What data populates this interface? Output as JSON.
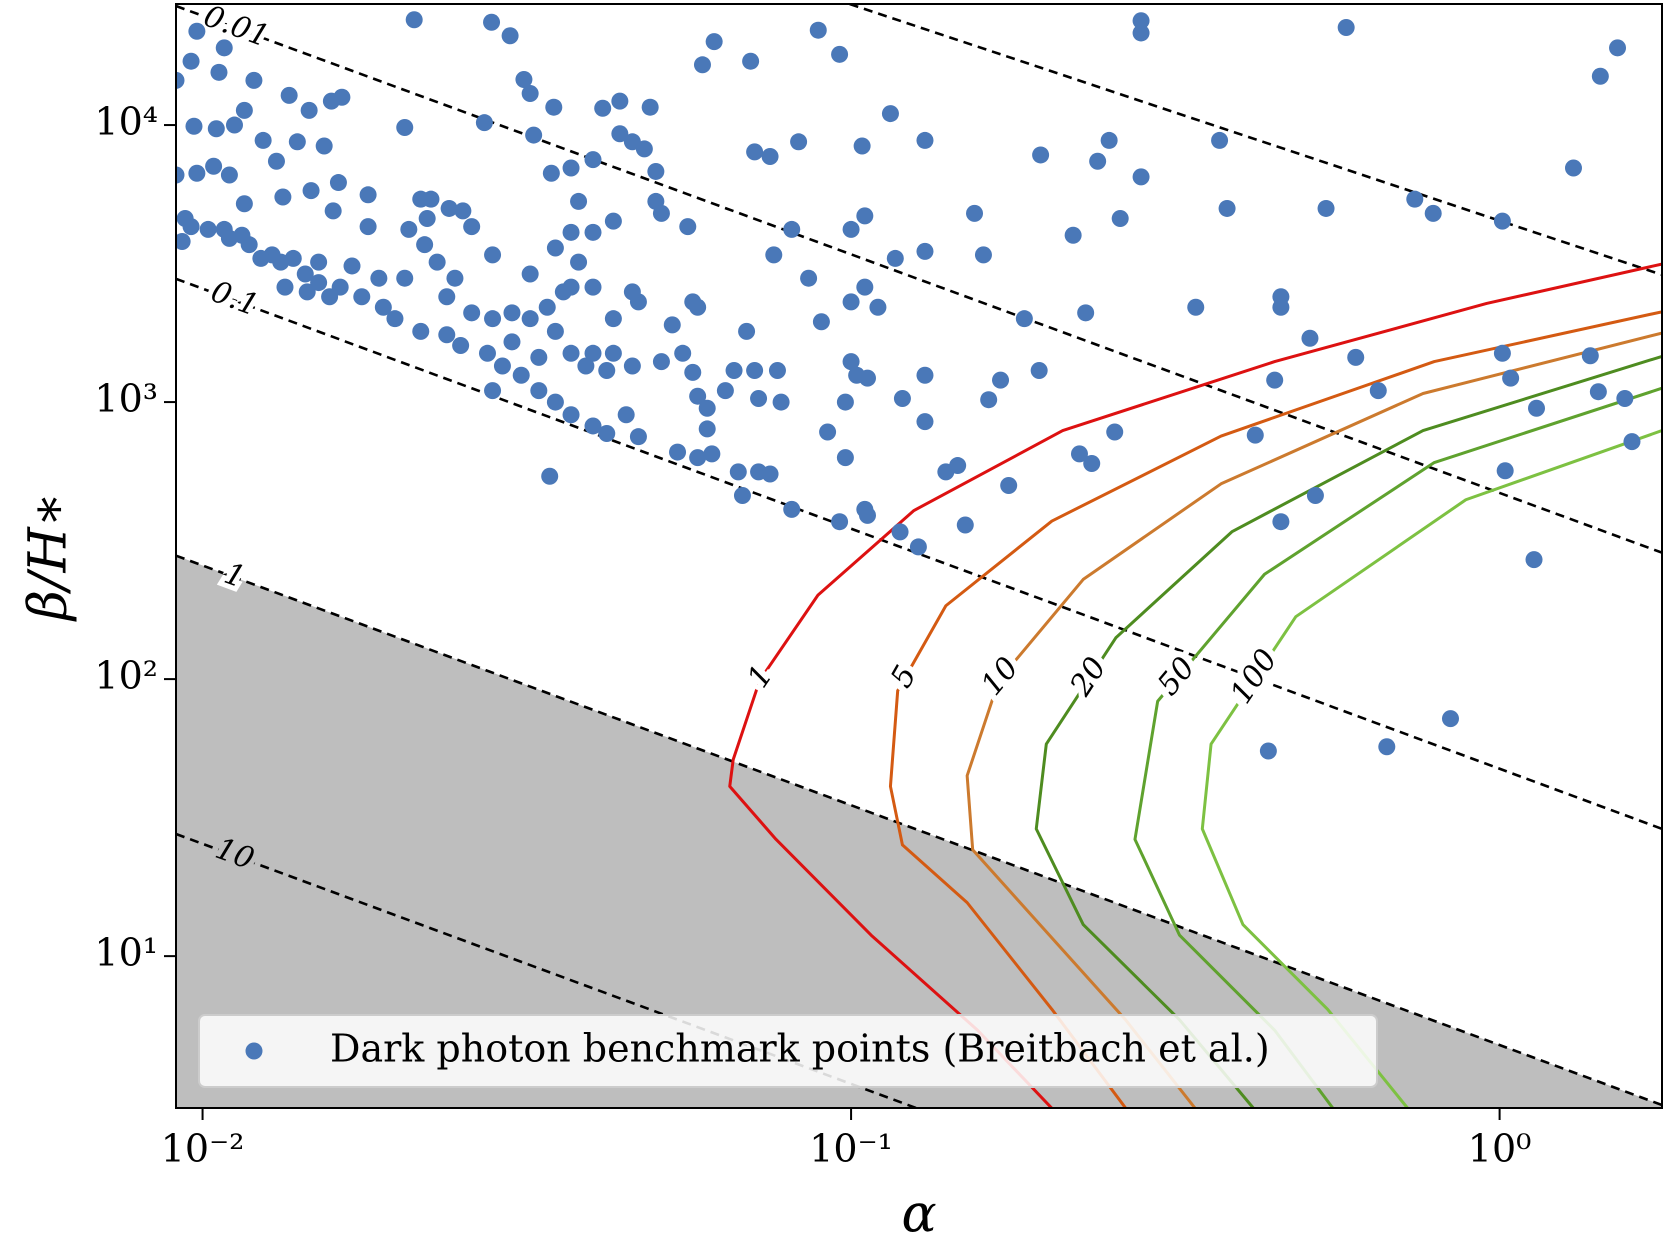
{
  "chart_data": {
    "type": "scatter",
    "xlabel": "α",
    "ylabel": "β/H∗",
    "xscale": "log",
    "yscale": "log",
    "xlim": [
      0.0091,
      1.78
    ],
    "ylim": [
      2.83,
      27350
    ],
    "xticks": [
      {
        "value": 0.01,
        "label": "10⁻²"
      },
      {
        "value": 0.1,
        "label": "10⁻¹"
      },
      {
        "value": 1,
        "label": "10⁰"
      }
    ],
    "yticks": [
      {
        "value": 10,
        "label": "10¹"
      },
      {
        "value": 100,
        "label": "10²"
      },
      {
        "value": 1000,
        "label": "10³"
      },
      {
        "value": 10000,
        "label": "10⁴"
      }
    ],
    "legend": "lower left",
    "series": [
      {
        "name": "Dark photon benchmark points (Breitbach et al.)",
        "color": "#4a78b8",
        "x": [
          0.0212,
          0.0279,
          0.0298,
          0.0615,
          0.089,
          0.096,
          0.07,
          0.059,
          0.28,
          0.28,
          0.58,
          1.52,
          1.43,
          1.3,
          1.01,
          0.79,
          0.74,
          0.54,
          0.38,
          0.37,
          0.28,
          0.25,
          0.24,
          0.26,
          0.196,
          0.22,
          0.23,
          0.185,
          0.155,
          0.16,
          0.13,
          0.115,
          0.104,
          0.105,
          0.1,
          0.117,
          0.13,
          0.105,
          0.1,
          0.11,
          0.09,
          0.086,
          0.083,
          0.075,
          0.071,
          0.076,
          0.081,
          0.069,
          0.066,
          0.071,
          0.077,
          0.072,
          0.078,
          0.057,
          0.058,
          0.055,
          0.051,
          0.064,
          0.06,
          0.06,
          0.058,
          0.054,
          0.061,
          0.067,
          0.072,
          0.075,
          0.068,
          0.081,
          0.092,
          0.098,
          0.096,
          0.105,
          0.106,
          0.119,
          0.127,
          0.12,
          0.13,
          0.13,
          0.102,
          0.1,
          0.106,
          0.098,
          0.14,
          0.146,
          0.15,
          0.175,
          0.163,
          0.17,
          0.195,
          0.225,
          0.235,
          0.255,
          0.34,
          0.46,
          0.46,
          0.51,
          0.6,
          0.45,
          0.65,
          0.42,
          0.52,
          0.46,
          0.44,
          0.67,
          0.84,
          1.13,
          1.02,
          1.01,
          1.04,
          1.38,
          1.42,
          1.56,
          1.6,
          1.14,
          0.0098,
          0.0108,
          0.0096,
          0.0106,
          0.0091,
          0.012,
          0.0136,
          0.0164,
          0.0158,
          0.0146,
          0.0116,
          0.0112,
          0.0105,
          0.0097,
          0.0205,
          0.0124,
          0.014,
          0.0154,
          0.013,
          0.0104,
          0.0098,
          0.0091,
          0.011,
          0.0147,
          0.0162,
          0.0133,
          0.018,
          0.0116,
          0.0217,
          0.0225,
          0.024,
          0.0159,
          0.018,
          0.0208,
          0.0222,
          0.0252,
          0.026,
          0.0272,
          0.0324,
          0.0348,
          0.032,
          0.0313,
          0.0414,
          0.044,
          0.049,
          0.044,
          0.046,
          0.048,
          0.05,
          0.04,
          0.037,
          0.0345,
          0.038,
          0.043,
          0.05,
          0.051,
          0.056,
          0.057,
          0.058,
          0.053,
          0.047,
          0.046,
          0.043,
          0.04,
          0.037,
          0.036,
          0.034,
          0.032,
          0.03,
          0.028,
          0.026,
          0.028,
          0.035,
          0.037,
          0.04,
          0.038,
          0.032,
          0.0245,
          0.023,
          0.022,
          0.0205,
          0.0187,
          0.017,
          0.0151,
          0.0138,
          0.0128,
          0.0118,
          0.011,
          0.0102,
          0.0096,
          0.0093,
          0.0094,
          0.0108,
          0.0115,
          0.0123,
          0.0132,
          0.0144,
          0.0151,
          0.0163,
          0.0176,
          0.019,
          0.0198,
          0.0217,
          0.0238,
          0.025,
          0.0275,
          0.029,
          0.031,
          0.033,
          0.035,
          0.037,
          0.04,
          0.042,
          0.045,
          0.042,
          0.04,
          0.037,
          0.039,
          0.043,
          0.046,
          0.03,
          0.028,
          0.033,
          0.035,
          0.047,
          0.0343,
          0.0238,
          0.0134,
          0.0145,
          0.0157
        ],
        "y": [
          24000,
          23500,
          21000,
          20000,
          22000,
          18000,
          17000,
          16500,
          23800,
          21500,
          22500,
          19000,
          15000,
          7000,
          4500,
          4800,
          5400,
          5000,
          5000,
          8800,
          6500,
          8800,
          7400,
          4600,
          7800,
          4000,
          2100,
          2000,
          4800,
          3400,
          8800,
          11000,
          8400,
          4700,
          4200,
          3300,
          3500,
          2600,
          2300,
          2200,
          1950,
          2800,
          8700,
          7700,
          8000,
          3400,
          4200,
          1800,
          1300,
          1300,
          1300,
          1030,
          1000,
          1280,
          1050,
          1500,
          1400,
          1100,
          950,
          800,
          630,
          660,
          650,
          560,
          560,
          550,
          460,
          410,
          780,
          630,
          370,
          410,
          390,
          340,
          300,
          1030,
          1250,
          850,
          1250,
          1400,
          1220,
          1000,
          560,
          590,
          360,
          500,
          1020,
          1200,
          1300,
          650,
          600,
          780,
          2200,
          2400,
          2200,
          1700,
          1450,
          1200,
          1100,
          760,
          460,
          370,
          55,
          57,
          72,
          270,
          565,
          1500,
          1220,
          1470,
          1090,
          1030,
          720,
          950,
          21800,
          19000,
          17000,
          15500,
          14500,
          14500,
          12800,
          12600,
          12200,
          11300,
          11300,
          10000,
          9700,
          9900,
          9800,
          8800,
          8700,
          8400,
          7400,
          7100,
          6700,
          6600,
          6600,
          5800,
          6200,
          5500,
          5600,
          5200,
          5400,
          5400,
          5000,
          4900,
          4300,
          4200,
          4600,
          4900,
          4300,
          10200,
          9200,
          11600,
          13000,
          14600,
          11500,
          12200,
          11600,
          9300,
          8700,
          8200,
          6800,
          7500,
          7000,
          6700,
          5300,
          4500,
          5300,
          4800,
          4300,
          2300,
          2200,
          1900,
          2300,
          2500,
          2000,
          2600,
          2600,
          2500,
          2200,
          2000,
          2100,
          2000,
          2100,
          3400,
          3600,
          4100,
          4100,
          3200,
          2900,
          2800,
          3200,
          3700,
          2800,
          2800,
          3100,
          3200,
          3300,
          3400,
          3700,
          3900,
          4200,
          4300,
          3800,
          4600,
          4200,
          4000,
          3300,
          3200,
          2900,
          2700,
          2600,
          2400,
          2200,
          2000,
          1800,
          1750,
          1600,
          1500,
          1350,
          1250,
          1100,
          1000,
          900,
          820,
          770,
          900,
          1300,
          1500,
          1500,
          1350,
          1500,
          1350,
          1650,
          1100,
          1450,
          1800,
          750,
          540,
          2400,
          2600,
          2500,
          2400
        ]
      }
    ],
    "lines": [
      {
        "label": "0.01",
        "color": "#000000",
        "x": [
          0.0091,
          1.78
        ],
        "y": [
          26900,
          286
        ]
      },
      {
        "label": "0.1",
        "color": "#000000",
        "x": [
          0.0091,
          1.78
        ],
        "y": [
          2786,
          28.8
        ]
      },
      {
        "label": "1",
        "color": "#000000",
        "fill": "#bebebe",
        "x": [
          0.0091,
          1.78
        ],
        "y": [
          279,
          2.9
        ]
      },
      {
        "label": "10",
        "color": "#000000",
        "x": [
          0.0091,
          0.126
        ],
        "y": [
          27.6,
          2.83
        ]
      },
      {
        "color": "#000000",
        "x": [
          0.0995,
          1.78
        ],
        "y": [
          27350,
          2880
        ]
      }
    ],
    "contours": [
      {
        "label": "1",
        "color": "#dd1111",
        "x": [
          1.78,
          0.955,
          0.45,
          0.212,
          0.125,
          0.0889,
          0.0723,
          0.0658,
          0.065,
          0.0766,
          0.1074,
          0.1567,
          0.2038
        ],
        "y": [
          3150,
          2270,
          1400,
          789,
          406,
          201,
          99,
          51.2,
          41.0,
          26.4,
          11.9,
          5.4,
          2.83
        ]
      },
      {
        "label": "5",
        "color": "#d45a12",
        "x": [
          1.78,
          0.793,
          0.372,
          0.204,
          0.14,
          0.118,
          0.115,
          0.12,
          0.151,
          0.204,
          0.265
        ],
        "y": [
          2118,
          1400,
          754,
          372,
          184,
          90.8,
          41.0,
          25.2,
          15.6,
          6.43,
          2.83
        ]
      },
      {
        "label": "10",
        "color": "#cc7a2e",
        "x": [
          1.78,
          0.762,
          0.372,
          0.228,
          0.169,
          0.151,
          0.154,
          0.189,
          0.265,
          0.339
        ],
        "y": [
          1775,
          1074,
          507,
          229,
          99,
          44.8,
          24.2,
          14.2,
          5.89,
          2.83
        ]
      },
      {
        "label": "20",
        "color": "#4e8c20",
        "x": [
          1.78,
          0.762,
          0.387,
          0.256,
          0.2,
          0.193,
          0.228,
          0.321,
          0.417
        ],
        "y": [
          1462,
          789,
          341,
          141,
          58.3,
          28.8,
          13.0,
          5.89,
          2.83
        ]
      },
      {
        "label": "50",
        "color": "#5fa22e",
        "x": [
          1.78,
          0.793,
          0.434,
          0.297,
          0.274,
          0.321,
          0.45,
          0.553
        ],
        "y": [
          1122,
          605,
          239,
          83.2,
          26.4,
          11.9,
          5.4,
          2.83
        ]
      },
      {
        "label": "100",
        "color": "#7dc142",
        "x": [
          1.78,
          0.887,
          0.485,
          0.359,
          0.348,
          0.402,
          0.543,
          0.721
        ],
        "y": [
          789,
          444,
          168,
          58.3,
          28.8,
          13.0,
          6.43,
          2.83
        ]
      }
    ]
  }
}
